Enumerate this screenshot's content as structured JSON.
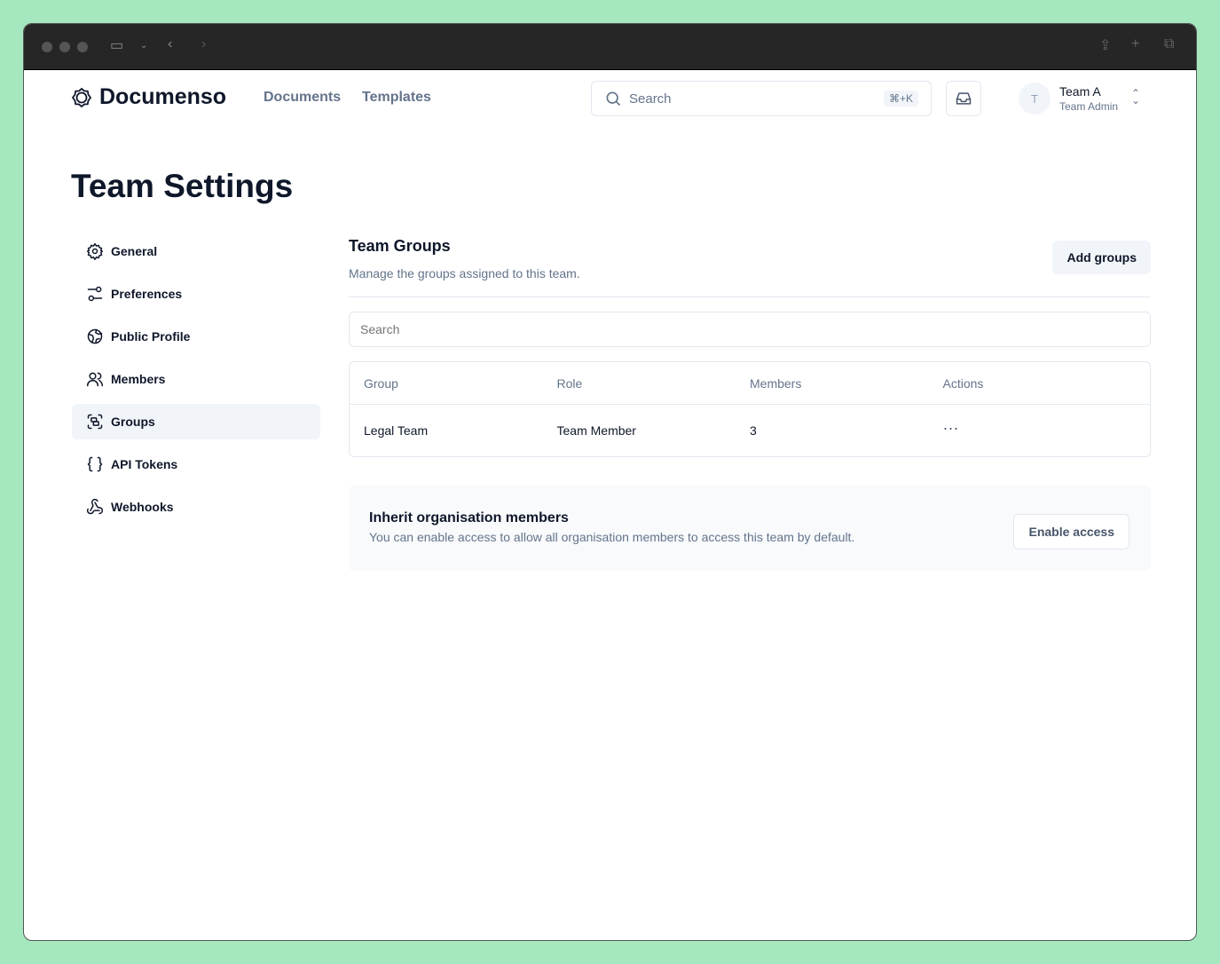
{
  "browser": {
    "icons": [
      "sidebar-icon",
      "chevron-down-icon",
      "back-icon",
      "forward-icon",
      "share-icon",
      "new-tab-icon",
      "tabs-icon"
    ]
  },
  "header": {
    "brand": "Documenso",
    "nav": [
      "Documents",
      "Templates"
    ],
    "search_label": "Search",
    "shortcut": "⌘+K",
    "avatar_initial": "T",
    "team_name": "Team A",
    "team_role": "Team Admin"
  },
  "page_title": "Team Settings",
  "sidebar": {
    "items": [
      {
        "label": "General",
        "icon": "gear-icon"
      },
      {
        "label": "Preferences",
        "icon": "sliders-icon"
      },
      {
        "label": "Public Profile",
        "icon": "globe-icon"
      },
      {
        "label": "Members",
        "icon": "users-icon"
      },
      {
        "label": "Groups",
        "icon": "group-icon",
        "active": true
      },
      {
        "label": "API Tokens",
        "icon": "braces-icon"
      },
      {
        "label": "Webhooks",
        "icon": "webhook-icon"
      }
    ]
  },
  "groups": {
    "title": "Team Groups",
    "description": "Manage the groups assigned to this team.",
    "add_label": "Add groups",
    "search_placeholder": "Search",
    "columns": [
      "Group",
      "Role",
      "Members",
      "Actions"
    ],
    "rows": [
      {
        "group": "Legal Team",
        "role": "Team Member",
        "members": "3"
      }
    ]
  },
  "inherit": {
    "title": "Inherit organisation members",
    "description": "You can enable access to allow all organisation members to access this team by default.",
    "button": "Enable access"
  }
}
